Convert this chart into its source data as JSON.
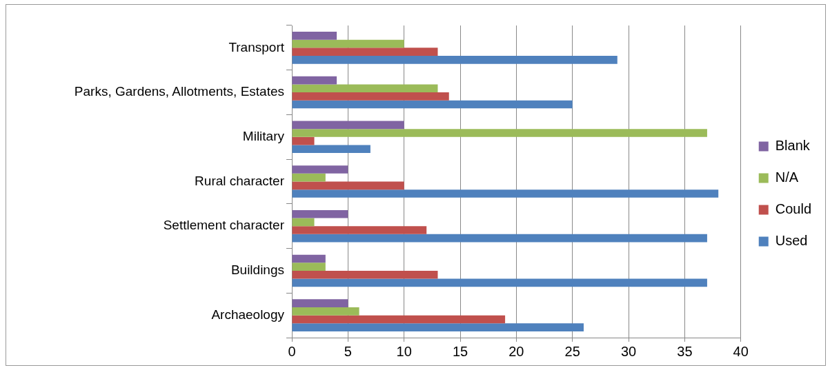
{
  "chart_data": {
    "type": "bar",
    "orientation": "horizontal",
    "categories": [
      "Transport",
      "Parks, Gardens, Allotments, Estates",
      "Military",
      "Rural character",
      "Settlement character",
      "Buildings",
      "Archaeology"
    ],
    "series": [
      {
        "name": "Blank",
        "color": "#8064a2",
        "values": [
          4,
          4,
          10,
          5,
          5,
          3,
          5
        ]
      },
      {
        "name": "N/A",
        "color": "#9bbb59",
        "values": [
          10,
          13,
          37,
          3,
          2,
          3,
          6
        ]
      },
      {
        "name": "Could",
        "color": "#c0504d",
        "values": [
          13,
          14,
          2,
          10,
          12,
          13,
          19
        ]
      },
      {
        "name": "Used",
        "color": "#4f81bd",
        "values": [
          29,
          25,
          7,
          38,
          37,
          37,
          26
        ]
      }
    ],
    "xlim": [
      0,
      40
    ],
    "xticks": [
      0,
      5,
      10,
      15,
      20,
      25,
      30,
      35,
      40
    ],
    "grid": "x",
    "legend": "right"
  }
}
